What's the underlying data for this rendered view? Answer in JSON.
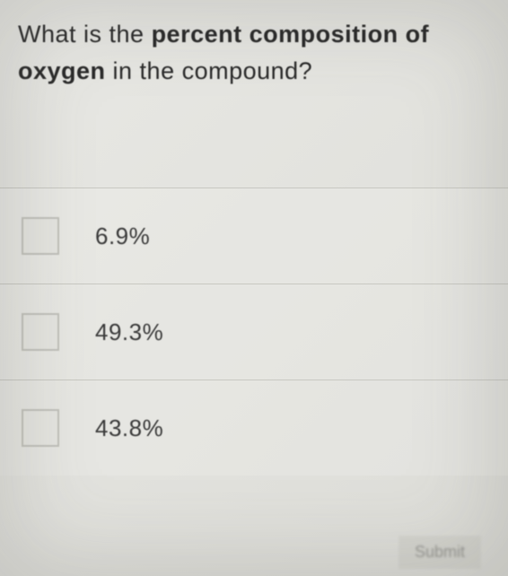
{
  "question": {
    "part1": "What is the ",
    "bold1": "percent composition of",
    "part2": " ",
    "bold2": "oxygen",
    "part3": " in the compound?"
  },
  "options": [
    {
      "label": "6.9%"
    },
    {
      "label": "49.3%"
    },
    {
      "label": "43.8%"
    }
  ],
  "submit_label": "Submit",
  "styling": {
    "background_gradient_start": "#e8e8e4",
    "background_gradient_end": "#ddddd8",
    "question_fontsize": 27,
    "question_color": "#2a2a2a",
    "option_fontsize": 26,
    "option_color": "#3a3a3a",
    "checkbox_border": "#c0c0ba",
    "checkbox_bg": "#e5e5e0",
    "divider_color": "#c8c8c2",
    "checkbox_size": 42
  }
}
